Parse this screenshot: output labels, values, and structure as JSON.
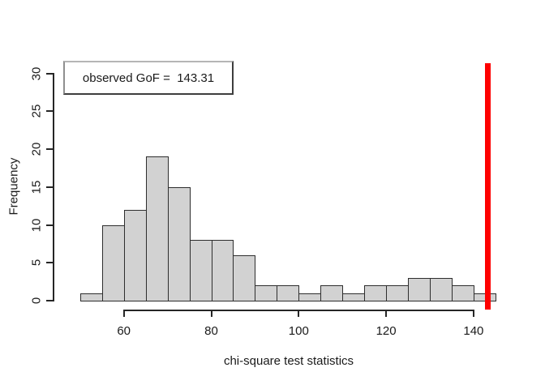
{
  "figure": {
    "title": "",
    "legend_label": "observed GoF =  143.31"
  },
  "chart_data": {
    "type": "bar",
    "subtype": "histogram",
    "title": "",
    "xlabel": "chi-square test statistics",
    "ylabel": "Frequency",
    "bins": {
      "start": 50,
      "width": 5
    },
    "bin_edges": [
      50,
      55,
      60,
      65,
      70,
      75,
      80,
      85,
      90,
      95,
      100,
      105,
      110,
      115,
      120,
      125,
      130,
      135,
      140,
      145
    ],
    "counts": [
      1,
      10,
      12,
      19,
      15,
      8,
      8,
      6,
      2,
      2,
      1,
      2,
      1,
      2,
      2,
      3,
      3,
      2,
      1
    ],
    "total_count": 100,
    "x_ticks": [
      60,
      80,
      100,
      120,
      140
    ],
    "y_ticks": [
      0,
      5,
      10,
      15,
      20,
      25,
      30
    ],
    "xlim": [
      50,
      145
    ],
    "ylim": [
      0,
      30
    ],
    "grid": false,
    "legend": {
      "text": "observed GoF =  143.31",
      "position": "top-left"
    },
    "observed_value": 143.31,
    "colors": {
      "bar_fill": "#d2d2d2",
      "bar_border": "#2e2e2e",
      "observed_line": "#fe0000",
      "axis": "#262626",
      "text": "#1a1a1a",
      "legend_background": "#ffffff"
    }
  }
}
